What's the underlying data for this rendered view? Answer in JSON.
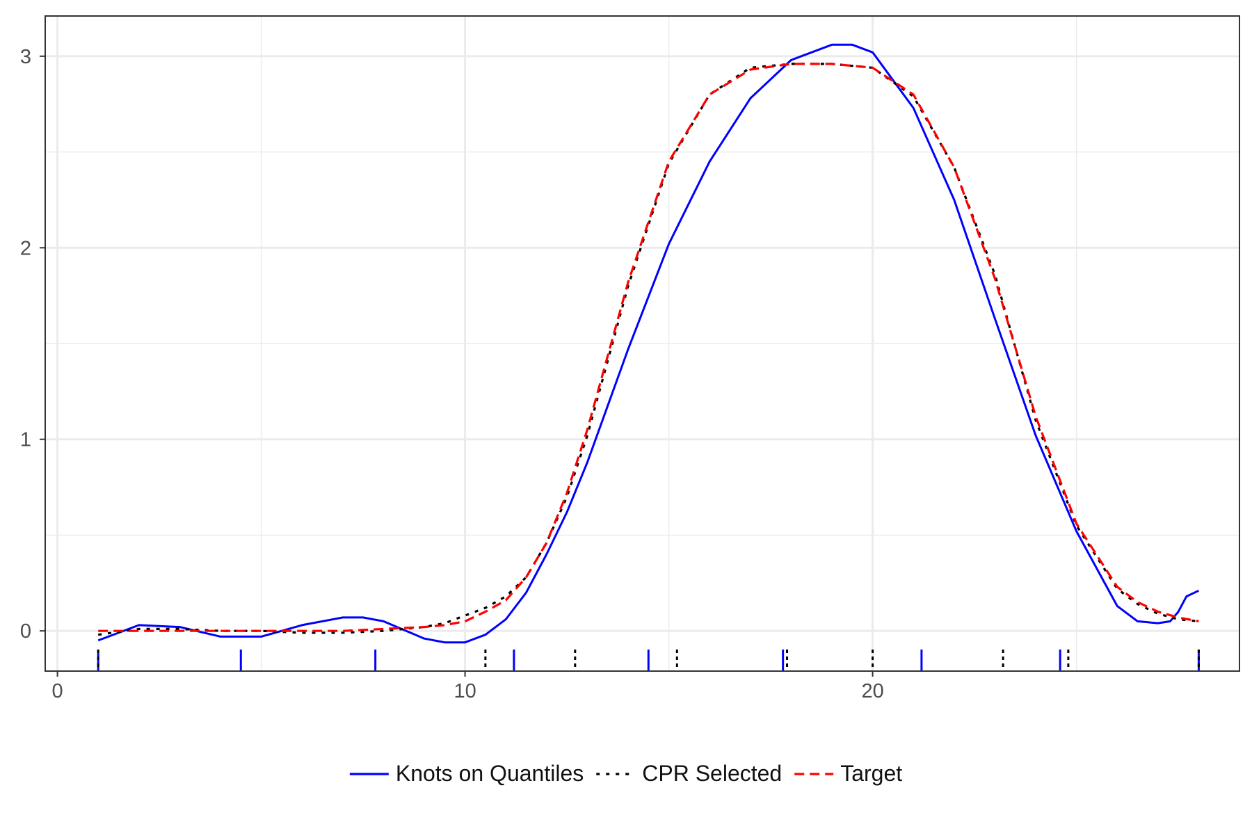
{
  "chart_data": {
    "type": "line",
    "title": "",
    "xlabel": "",
    "ylabel": "",
    "xlim": [
      -0.3,
      29
    ],
    "ylim": [
      -0.21,
      3.21
    ],
    "xticks": [
      0,
      10,
      20
    ],
    "xtick_labels": [
      "0",
      "10",
      "20"
    ],
    "xminor": [
      5,
      15,
      25
    ],
    "yticks": [
      0,
      1,
      2,
      3
    ],
    "ytick_labels": [
      "0",
      "1",
      "2",
      "3"
    ],
    "yminor": [
      0.5,
      1.5,
      2.5
    ],
    "grid": true,
    "legend_position": "bottom",
    "series": [
      {
        "name": "Knots on Quantiles",
        "color": "#0000ff",
        "style": "solid",
        "x": [
          1,
          2,
          3,
          4,
          5,
          6,
          7,
          7.5,
          8,
          9,
          9.5,
          10,
          10.5,
          11,
          11.5,
          12,
          12.5,
          13,
          14,
          15,
          16,
          17,
          18,
          19,
          19.5,
          20,
          21,
          22,
          23,
          24,
          25,
          26,
          26.5,
          27,
          27.3,
          27.5,
          27.7,
          28,
          28
        ],
        "values": [
          -0.05,
          0.03,
          0.02,
          -0.03,
          -0.03,
          0.03,
          0.07,
          0.07,
          0.05,
          -0.04,
          -0.06,
          -0.06,
          -0.02,
          0.06,
          0.2,
          0.4,
          0.62,
          0.88,
          1.47,
          2.02,
          2.45,
          2.78,
          2.98,
          3.06,
          3.06,
          3.02,
          2.73,
          2.25,
          1.63,
          1.02,
          0.52,
          0.13,
          0.05,
          0.04,
          0.05,
          0.1,
          0.18,
          0.21,
          0.21
        ]
      },
      {
        "name": "CPR Selected",
        "color": "#000000",
        "style": "dotted",
        "x": [
          1,
          2,
          3,
          4,
          5,
          6,
          7,
          8,
          9,
          9.5,
          10,
          10.5,
          11,
          11.5,
          12,
          12.5,
          13,
          14,
          15,
          16,
          17,
          18,
          19,
          20,
          21,
          22,
          23,
          24,
          25,
          26,
          26.5,
          27,
          27.5,
          28
        ],
        "values": [
          -0.02,
          0.01,
          0.01,
          0,
          0,
          -0.01,
          -0.01,
          0,
          0.02,
          0.04,
          0.08,
          0.12,
          0.18,
          0.28,
          0.46,
          0.7,
          1.02,
          1.8,
          2.44,
          2.8,
          2.94,
          2.96,
          2.96,
          2.94,
          2.79,
          2.42,
          1.86,
          1.1,
          0.55,
          0.22,
          0.14,
          0.09,
          0.06,
          0.05
        ]
      },
      {
        "name": "Target",
        "color": "#ff0000",
        "style": "dashed",
        "x": [
          1,
          2,
          3,
          4,
          5,
          6,
          7,
          8,
          9,
          9.5,
          10,
          10.5,
          11,
          11.5,
          12,
          12.5,
          13,
          14,
          15,
          16,
          17,
          18,
          19,
          20,
          21,
          22,
          23,
          24,
          25,
          26,
          26.5,
          27,
          27.5,
          28
        ],
        "values": [
          0,
          0,
          0,
          0,
          0,
          0,
          0,
          0.01,
          0.02,
          0.03,
          0.05,
          0.1,
          0.16,
          0.28,
          0.46,
          0.72,
          1.05,
          1.82,
          2.45,
          2.8,
          2.93,
          2.96,
          2.96,
          2.94,
          2.8,
          2.42,
          1.84,
          1.12,
          0.56,
          0.23,
          0.15,
          0.1,
          0.07,
          0.05
        ]
      }
    ],
    "rug": [
      {
        "series": "Knots on Quantiles",
        "color": "#0000ff",
        "style": "solid",
        "x": [
          1,
          4.5,
          7.8,
          11.2,
          14.5,
          17.8,
          21.2,
          24.6,
          28
        ]
      },
      {
        "series": "CPR Selected",
        "color": "#000000",
        "style": "dotted",
        "x": [
          1,
          10.5,
          12.7,
          15.2,
          17.9,
          20,
          23.2,
          24.8,
          28
        ]
      }
    ]
  }
}
